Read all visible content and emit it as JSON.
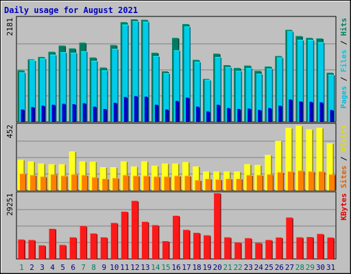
{
  "chart_data": {
    "type": "bar",
    "title": "Daily usage for August 2021",
    "categories": [
      "1",
      "2",
      "3",
      "4",
      "5",
      "6",
      "7",
      "8",
      "9",
      "10",
      "11",
      "12",
      "13",
      "14",
      "15",
      "16",
      "17",
      "18",
      "19",
      "20",
      "21",
      "22",
      "23",
      "24",
      "25",
      "26",
      "27",
      "28",
      "29",
      "30",
      "31"
    ],
    "weekend_categories": [
      "1",
      "7",
      "8",
      "14",
      "15",
      "21",
      "22",
      "28",
      "29"
    ],
    "panels": [
      {
        "name": "hits",
        "ylim": [
          0,
          2181
        ],
        "max_tick_label": "2181",
        "legend_parts": [
          {
            "text": "Pages",
            "color": "#00c0e0"
          },
          {
            "text": " / ",
            "color": "#000000"
          },
          {
            "text": "Files",
            "color": "#00c8e8"
          },
          {
            "text": " / ",
            "color": "#000000"
          },
          {
            "text": "Hits",
            "color": "#008060"
          }
        ],
        "series": [
          {
            "name": "Hits",
            "color": "#007a60",
            "values": [
              1080,
              1310,
              1360,
              1470,
              1600,
              1540,
              1660,
              1350,
              1140,
              1610,
              2090,
              2150,
              2140,
              1450,
              1060,
              1760,
              2050,
              1300,
              900,
              1430,
              1190,
              1130,
              1180,
              1070,
              1160,
              1380,
              1930,
              1800,
              1760,
              1750,
              1030
            ]
          },
          {
            "name": "Files",
            "color": "#00ccea",
            "values": [
              1040,
              1290,
              1330,
              1410,
              1460,
              1450,
              1480,
              1280,
              1080,
              1530,
              2040,
              2110,
              2100,
              1380,
              1020,
              1500,
              2000,
              1260,
              880,
              1360,
              1150,
              1070,
              1130,
              1010,
              1120,
              1350,
              1900,
              1720,
              1720,
              1670,
              990
            ]
          },
          {
            "name": "Pages",
            "color": "#0000d0",
            "values": [
              260,
              310,
              340,
              360,
              380,
              370,
              390,
              320,
              270,
              400,
              520,
              540,
              530,
              360,
              260,
              440,
              510,
              320,
              220,
              360,
              290,
              270,
              280,
              250,
              290,
              340,
              470,
              430,
              420,
              410,
              250
            ]
          }
        ]
      },
      {
        "name": "visits",
        "ylim": [
          0,
          452
        ],
        "max_tick_label": "452",
        "legend_parts": [
          {
            "text": "Sites",
            "color": "#e06000"
          },
          {
            "text": " / ",
            "color": "#000000"
          },
          {
            "text": "Visits",
            "color": "#e0e000"
          }
        ],
        "series": [
          {
            "name": "Visits",
            "color": "#ffff20",
            "values": [
              210,
              200,
              185,
              180,
              180,
              268,
              200,
              198,
              160,
              160,
              200,
              165,
              200,
              170,
              185,
              185,
              195,
              165,
              130,
              130,
              130,
              130,
              180,
              175,
              245,
              340,
              430,
              445,
              420,
              430,
              325
            ]
          },
          {
            "name": "Sites",
            "color": "#ff8000",
            "values": [
              115,
              105,
              95,
              110,
              100,
              110,
              105,
              90,
              80,
              85,
              105,
              100,
              100,
              95,
              95,
              100,
              100,
              70,
              80,
              75,
              80,
              80,
              105,
              105,
              110,
              125,
              130,
              135,
              130,
              130,
              110
            ]
          }
        ]
      },
      {
        "name": "kbytes",
        "ylim": [
          0,
          29251
        ],
        "max_tick_label": "29251",
        "legend_parts": [
          {
            "text": "KBytes",
            "color": "#e00000"
          }
        ],
        "series": [
          {
            "name": "KBytes",
            "color": "#ff1818",
            "values": [
              8600,
              8400,
              6000,
              13400,
              6200,
              9600,
              14600,
              11300,
              9600,
              16000,
              21000,
              25800,
              16500,
              15000,
              7900,
              19200,
              12900,
              11600,
              10500,
              29251,
              9600,
              7300,
              9200,
              7100,
              8400,
              9500,
              18400,
              9600,
              9700,
              11100,
              9500
            ]
          }
        ]
      }
    ]
  }
}
